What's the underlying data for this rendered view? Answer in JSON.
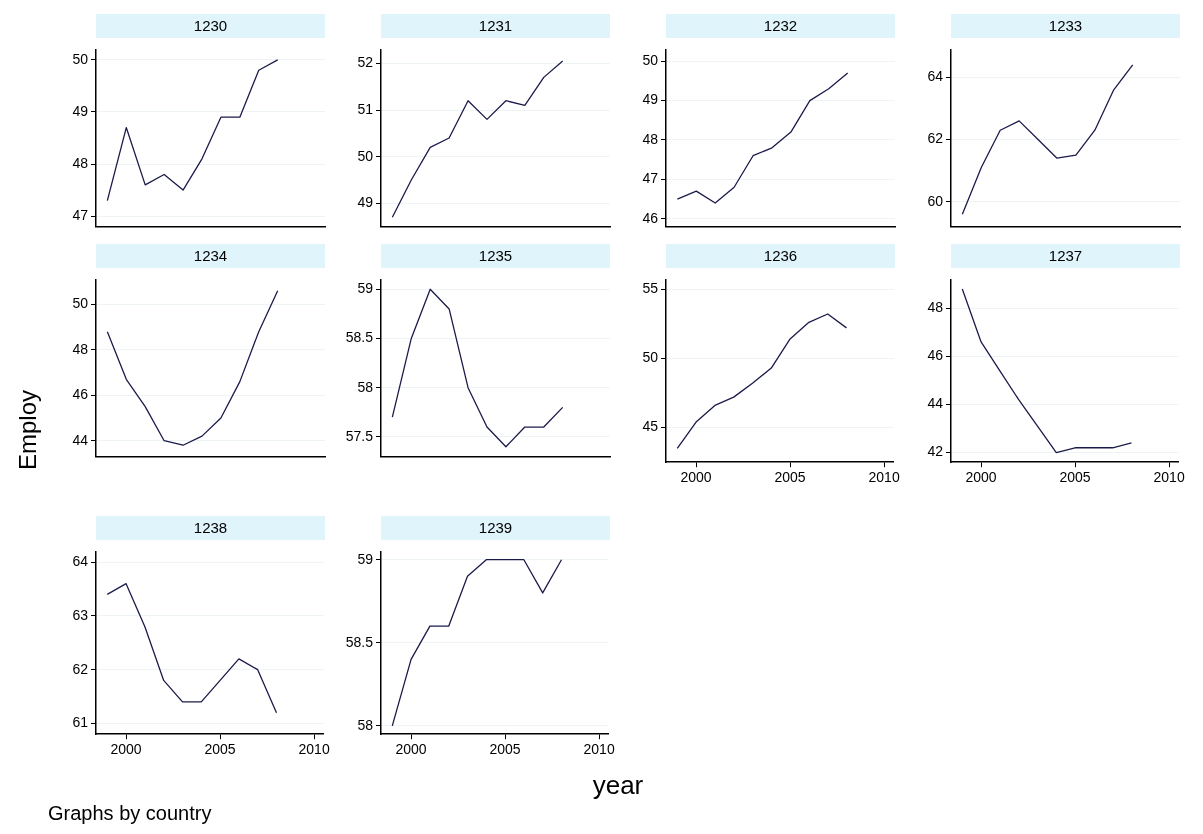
{
  "chart_data": [
    {
      "type": "line",
      "title": "1230",
      "x": [
        1999,
        2000,
        2001,
        2002,
        2003,
        2004,
        2005,
        2006,
        2007,
        2008
      ],
      "xlim": [
        1998.4,
        2010.5
      ],
      "xticks": [
        2000,
        2005,
        2010
      ],
      "ylim": [
        46.8,
        50.2
      ],
      "yticks": [
        47,
        48,
        49,
        50
      ],
      "grid": "y",
      "tick_labels": "y",
      "series": [
        {
          "color": "#1b1b4b",
          "values": [
            47.3,
            48.7,
            47.6,
            47.8,
            47.5,
            48.1,
            48.9,
            48.9,
            49.8,
            50.0
          ]
        }
      ]
    },
    {
      "type": "line",
      "title": "1231",
      "x": [
        1999,
        2000,
        2001,
        2002,
        2003,
        2004,
        2005,
        2006,
        2007,
        2008
      ],
      "xlim": [
        1998.4,
        2010.5
      ],
      "xticks": [
        2000,
        2005,
        2010
      ],
      "ylim": [
        48.5,
        52.3
      ],
      "yticks": [
        49,
        50,
        51,
        52
      ],
      "grid": "y",
      "tick_labels": "y",
      "series": [
        {
          "color": "#1b1b4b",
          "values": [
            48.7,
            49.5,
            50.2,
            50.4,
            51.2,
            50.8,
            51.2,
            51.1,
            51.7,
            52.05
          ]
        }
      ]
    },
    {
      "type": "line",
      "title": "1232",
      "x": [
        1999,
        2000,
        2001,
        2002,
        2003,
        2004,
        2005,
        2006,
        2007,
        2008
      ],
      "xlim": [
        1998.4,
        2010.5
      ],
      "xticks": [
        2000,
        2005,
        2010
      ],
      "ylim": [
        45.8,
        50.3
      ],
      "yticks": [
        46,
        47,
        48,
        49,
        50
      ],
      "grid": "y",
      "tick_labels": "y",
      "series": [
        {
          "color": "#1b1b4b",
          "values": [
            46.5,
            46.7,
            46.4,
            46.8,
            47.6,
            47.8,
            48.2,
            49.0,
            49.3,
            49.7
          ]
        }
      ]
    },
    {
      "type": "line",
      "title": "1233",
      "x": [
        1999,
        2000,
        2001,
        2002,
        2003,
        2004,
        2005,
        2006,
        2007,
        2008
      ],
      "xlim": [
        1998.4,
        2010.5
      ],
      "xticks": [
        2000,
        2005,
        2010
      ],
      "ylim": [
        59.2,
        64.9
      ],
      "yticks": [
        60,
        62,
        64
      ],
      "grid": "y",
      "tick_labels": "y",
      "series": [
        {
          "color": "#1b1b4b",
          "values": [
            59.6,
            61.1,
            62.3,
            62.6,
            62.0,
            61.4,
            61.5,
            62.3,
            63.6,
            64.4
          ]
        }
      ]
    },
    {
      "type": "line",
      "title": "1234",
      "ylabel": "Employ",
      "x": [
        1999,
        2000,
        2001,
        2002,
        2003,
        2004,
        2005,
        2006,
        2007,
        2008
      ],
      "xlim": [
        1998.4,
        2010.5
      ],
      "xticks": [
        2000,
        2005,
        2010
      ],
      "ylim": [
        43.3,
        51.1
      ],
      "yticks": [
        44,
        46,
        48,
        50
      ],
      "grid": "y",
      "tick_labels": "y",
      "series": [
        {
          "color": "#1b1b4b",
          "values": [
            48.8,
            46.7,
            45.5,
            44.0,
            43.8,
            44.2,
            45.0,
            46.6,
            48.8,
            50.6
          ]
        }
      ]
    },
    {
      "type": "line",
      "title": "1235",
      "x": [
        1999,
        2000,
        2001,
        2002,
        2003,
        2004,
        2005,
        2006,
        2007,
        2008
      ],
      "xlim": [
        1998.4,
        2010.5
      ],
      "xticks": [
        2000,
        2005,
        2010
      ],
      "ylim": [
        57.3,
        59.1
      ],
      "yticks": [
        57.5,
        58,
        58.5,
        59
      ],
      "grid": "y",
      "tick_labels": "y",
      "series": [
        {
          "color": "#1b1b4b",
          "values": [
            57.7,
            58.5,
            59.0,
            58.8,
            58.0,
            57.6,
            57.4,
            57.6,
            57.6,
            57.8
          ]
        }
      ]
    },
    {
      "type": "line",
      "title": "1236",
      "x": [
        1999,
        2000,
        2001,
        2002,
        2003,
        2004,
        2005,
        2006,
        2007,
        2008
      ],
      "xlim": [
        1998.4,
        2010.5
      ],
      "xticks": [
        2000,
        2005,
        2010
      ],
      "ylim": [
        42.5,
        55.7
      ],
      "yticks": [
        45,
        50,
        55
      ],
      "grid": "y",
      "series": [
        {
          "color": "#1b1b4b",
          "values": [
            43.5,
            45.4,
            46.6,
            47.2,
            48.2,
            49.3,
            51.4,
            52.6,
            53.2,
            52.2
          ]
        }
      ]
    },
    {
      "type": "line",
      "title": "1237",
      "x": [
        1999,
        2000,
        2001,
        2002,
        2003,
        2004,
        2005,
        2006,
        2007,
        2008
      ],
      "xlim": [
        1998.4,
        2010.5
      ],
      "xticks": [
        2000,
        2005,
        2010
      ],
      "ylim": [
        41.6,
        49.2
      ],
      "yticks": [
        42,
        44,
        46,
        48
      ],
      "grid": "y",
      "series": [
        {
          "color": "#1b1b4b",
          "values": [
            48.8,
            46.6,
            45.4,
            44.2,
            43.1,
            42.0,
            42.2,
            42.2,
            42.2,
            42.4
          ]
        }
      ]
    },
    {
      "type": "line",
      "title": "1238",
      "annotations": [
        "Graphs by country"
      ],
      "x": [
        1999,
        2000,
        2001,
        2002,
        2003,
        2004,
        2005,
        2006,
        2007,
        2008
      ],
      "xlim": [
        1998.4,
        2010.5
      ],
      "xticks": [
        2000,
        2005,
        2010
      ],
      "ylim": [
        60.8,
        64.2
      ],
      "yticks": [
        61,
        62,
        63,
        64
      ],
      "grid": "y",
      "series": [
        {
          "color": "#1b1b4b",
          "values": [
            63.4,
            63.6,
            62.8,
            61.8,
            61.4,
            61.4,
            61.8,
            62.2,
            62.0,
            61.2
          ]
        }
      ]
    },
    {
      "type": "line",
      "title": "1239",
      "xlabel": "year",
      "x": [
        1999,
        2000,
        2001,
        2002,
        2003,
        2004,
        2005,
        2006,
        2007,
        2008
      ],
      "xlim": [
        1998.4,
        2010.5
      ],
      "xticks": [
        2000,
        2005,
        2010
      ],
      "ylim": [
        57.95,
        59.05
      ],
      "yticks": [
        58,
        58.5,
        59
      ],
      "grid": "y",
      "series": [
        {
          "color": "#1b1b4b",
          "values": [
            58.0,
            58.4,
            58.6,
            58.6,
            58.9,
            59.0,
            59.0,
            59.0,
            58.8,
            59.0
          ]
        }
      ]
    }
  ]
}
